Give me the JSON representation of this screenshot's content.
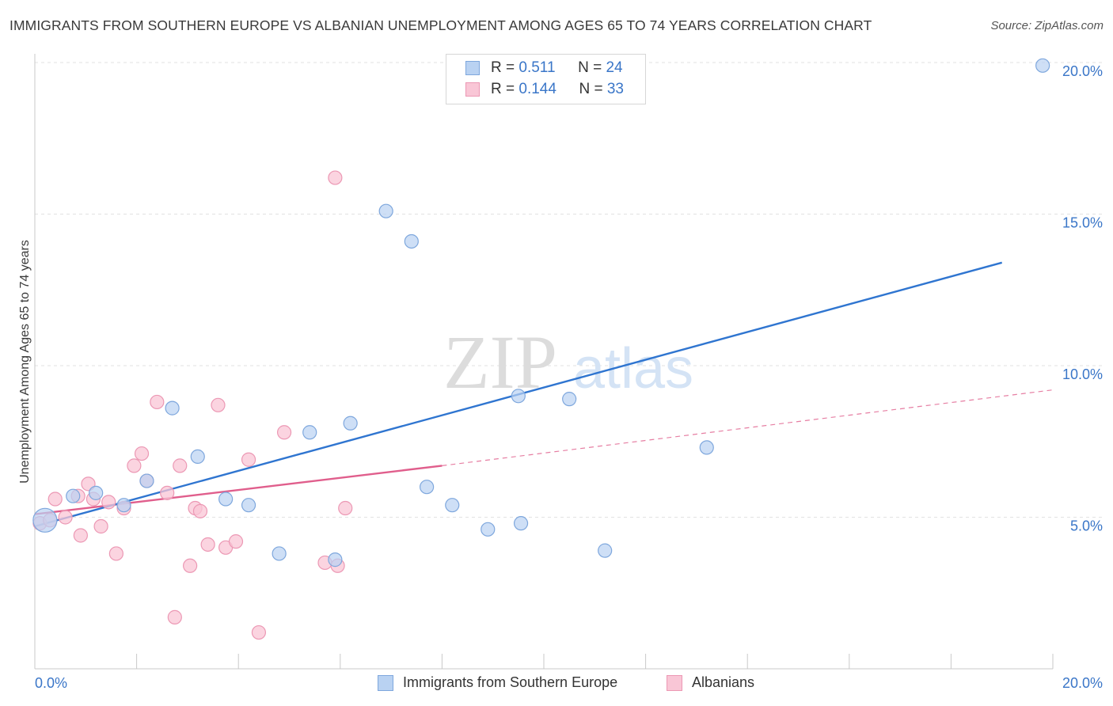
{
  "title": "IMMIGRANTS FROM SOUTHERN EUROPE VS ALBANIAN UNEMPLOYMENT AMONG AGES 65 TO 74 YEARS CORRELATION CHART",
  "source": "Source: ZipAtlas.com",
  "watermark": {
    "zip": "ZIP",
    "atlas": "atlas"
  },
  "legend": {
    "series1": {
      "r_label": "R = ",
      "r_value": "0.511",
      "n_label": "N = ",
      "n_value": "24"
    },
    "series2": {
      "r_label": "R = ",
      "r_value": "0.144",
      "n_label": "N = ",
      "n_value": "33"
    }
  },
  "chart_data": {
    "type": "scatter",
    "title": "IMMIGRANTS FROM SOUTHERN EUROPE VS ALBANIAN UNEMPLOYMENT AMONG AGES 65 TO 74 YEARS CORRELATION CHART",
    "xlabel": "",
    "ylabel": "Unemployment Among Ages 65 to 74 years",
    "xlim": [
      0,
      20
    ],
    "ylim": [
      0,
      20.5
    ],
    "x_tick_labels": [
      "0.0%",
      "20.0%"
    ],
    "y_ticks": [
      5,
      10,
      15,
      20
    ],
    "y_tick_labels": [
      "5.0%",
      "10.0%",
      "15.0%",
      "20.0%"
    ],
    "colors": {
      "series1_fill": "#b9d2f2",
      "series1_stroke": "#7ea7dd",
      "series1_line": "#2f75d0",
      "series2_fill": "#f9c6d6",
      "series2_stroke": "#ec98b4",
      "series2_line": "#e05e8c",
      "axis_text": "#3a76c8"
    },
    "series": [
      {
        "name": "Immigrants from Southern Europe",
        "r": 0.511,
        "n": 24,
        "points": [
          [
            0.2,
            4.9
          ],
          [
            0.75,
            5.7
          ],
          [
            1.2,
            5.8
          ],
          [
            1.75,
            5.4
          ],
          [
            2.2,
            6.2
          ],
          [
            2.7,
            8.6
          ],
          [
            3.2,
            7.0
          ],
          [
            3.75,
            5.6
          ],
          [
            4.2,
            5.4
          ],
          [
            4.8,
            3.8
          ],
          [
            5.4,
            7.8
          ],
          [
            5.9,
            3.6
          ],
          [
            6.2,
            8.1
          ],
          [
            6.9,
            15.1
          ],
          [
            7.4,
            14.1
          ],
          [
            7.7,
            6.0
          ],
          [
            8.2,
            5.4
          ],
          [
            8.9,
            4.6
          ],
          [
            9.5,
            9.0
          ],
          [
            9.55,
            4.8
          ],
          [
            10.5,
            8.9
          ],
          [
            11.2,
            3.9
          ],
          [
            13.2,
            7.3
          ],
          [
            19.8,
            19.9
          ]
        ],
        "trend": {
          "x": [
            0,
            19.0
          ],
          "y": [
            4.7,
            13.4
          ],
          "style": "solid"
        }
      },
      {
        "name": "Albanians",
        "r": 0.144,
        "n": 33,
        "points": [
          [
            0.1,
            4.8
          ],
          [
            0.3,
            4.9
          ],
          [
            0.4,
            5.6
          ],
          [
            0.6,
            5.0
          ],
          [
            0.85,
            5.7
          ],
          [
            0.9,
            4.4
          ],
          [
            1.05,
            6.1
          ],
          [
            1.15,
            5.6
          ],
          [
            1.3,
            4.7
          ],
          [
            1.45,
            5.5
          ],
          [
            1.6,
            3.8
          ],
          [
            1.75,
            5.3
          ],
          [
            1.95,
            6.7
          ],
          [
            2.1,
            7.1
          ],
          [
            2.2,
            6.2
          ],
          [
            2.4,
            8.8
          ],
          [
            2.6,
            5.8
          ],
          [
            2.75,
            1.7
          ],
          [
            2.85,
            6.7
          ],
          [
            3.05,
            3.4
          ],
          [
            3.15,
            5.3
          ],
          [
            3.25,
            5.2
          ],
          [
            3.4,
            4.1
          ],
          [
            3.6,
            8.7
          ],
          [
            3.75,
            4.0
          ],
          [
            3.95,
            4.2
          ],
          [
            4.2,
            6.9
          ],
          [
            4.4,
            1.2
          ],
          [
            4.9,
            7.8
          ],
          [
            5.7,
            3.5
          ],
          [
            5.9,
            16.2
          ],
          [
            5.95,
            3.4
          ],
          [
            6.1,
            5.3
          ]
        ],
        "trend_solid": {
          "x": [
            0,
            8.0
          ],
          "y": [
            5.1,
            6.7
          ]
        },
        "trend_dashed": {
          "x": [
            8.0,
            20.0
          ],
          "y": [
            6.7,
            9.2
          ]
        }
      }
    ]
  },
  "bottom_legend": {
    "series1_label": "Immigrants from Southern Europe",
    "series2_label": "Albanians"
  }
}
